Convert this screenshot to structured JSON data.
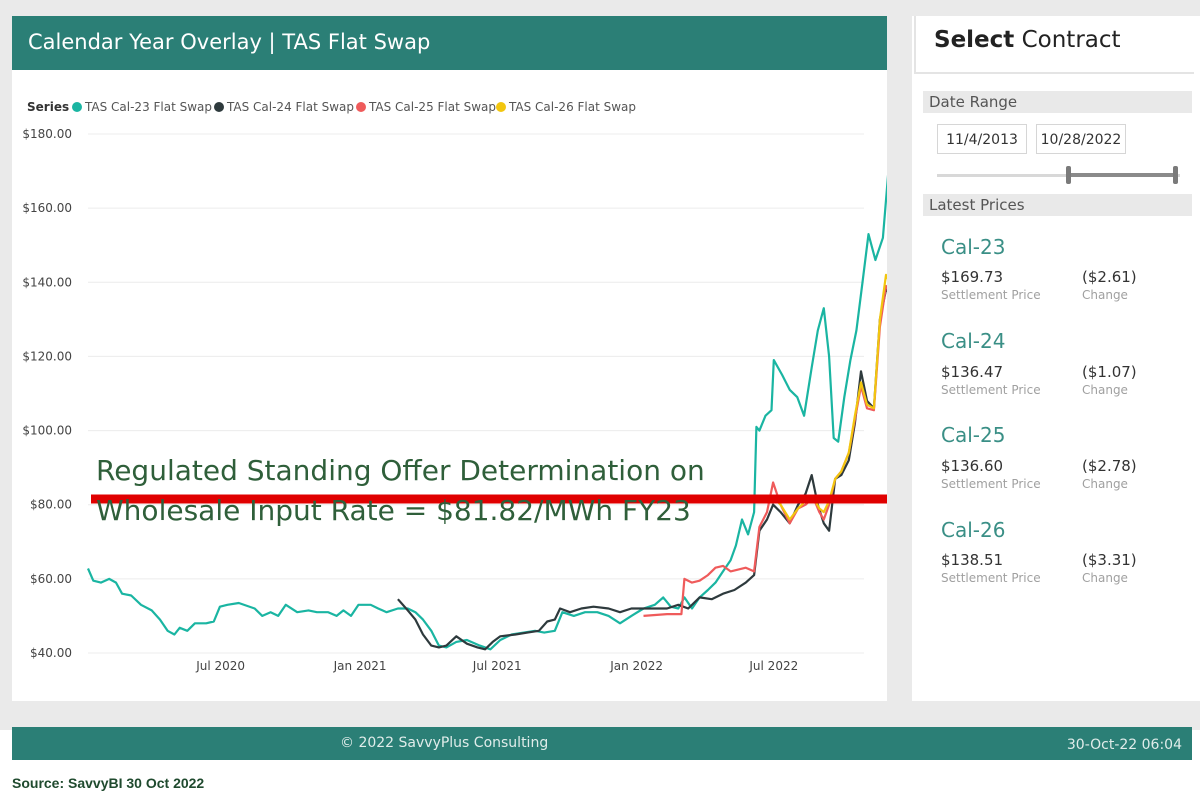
{
  "header": {
    "title": "Calendar Year Overlay | TAS Flat Swap"
  },
  "colors": {
    "teal": "#1ab5a2",
    "dark": "#2e3a3d",
    "red": "#ef5b5b",
    "yellow": "#f2c60f",
    "header_bg": "#2b7f76",
    "annotation": "#e00000",
    "annotation_text": "#2f5f3a"
  },
  "chart_data": {
    "type": "line",
    "legend_title": "Series",
    "legend_position": "top-left",
    "grid": true,
    "ylim": [
      40,
      180
    ],
    "y_ticks": [
      "$40.00",
      "$60.00",
      "$80.00",
      "$100.00",
      "$120.00",
      "$140.00",
      "$160.00",
      "$180.00"
    ],
    "y_tick_values": [
      40,
      60,
      80,
      100,
      120,
      140,
      160,
      180
    ],
    "x_ticks": [
      "Jul 2020",
      "Jan 2021",
      "Jul 2021",
      "Jan 2022",
      "Jul 2022"
    ],
    "x_tick_dates": [
      "2020-07-01",
      "2021-01-01",
      "2021-07-01",
      "2022-01-01",
      "2022-07-01"
    ],
    "xlim": [
      "2020-01-08",
      "2022-10-28"
    ],
    "series": [
      {
        "name": "TAS Cal-23 Flat Swap",
        "color": "#1ab5a2",
        "points": [
          [
            "2020-01-08",
            62.8
          ],
          [
            "2020-01-15",
            59.5
          ],
          [
            "2020-01-25",
            59
          ],
          [
            "2020-02-05",
            60
          ],
          [
            "2020-02-14",
            59
          ],
          [
            "2020-02-22",
            56
          ],
          [
            "2020-03-05",
            55.5
          ],
          [
            "2020-03-18",
            53
          ],
          [
            "2020-04-01",
            51.5
          ],
          [
            "2020-04-12",
            49
          ],
          [
            "2020-04-22",
            46
          ],
          [
            "2020-05-01",
            45
          ],
          [
            "2020-05-08",
            46.8
          ],
          [
            "2020-05-18",
            46
          ],
          [
            "2020-05-28",
            48
          ],
          [
            "2020-06-12",
            48
          ],
          [
            "2020-06-22",
            48.5
          ],
          [
            "2020-06-30",
            52.5
          ],
          [
            "2020-07-10",
            53
          ],
          [
            "2020-07-25",
            53.5
          ],
          [
            "2020-08-15",
            52
          ],
          [
            "2020-08-25",
            50
          ],
          [
            "2020-09-05",
            51
          ],
          [
            "2020-09-15",
            50
          ],
          [
            "2020-09-25",
            53
          ],
          [
            "2020-10-10",
            51
          ],
          [
            "2020-10-25",
            51.5
          ],
          [
            "2020-11-05",
            51
          ],
          [
            "2020-11-20",
            51
          ],
          [
            "2020-12-01",
            50
          ],
          [
            "2020-12-10",
            51.5
          ],
          [
            "2020-12-20",
            50
          ],
          [
            "2020-12-30",
            53
          ],
          [
            "2021-01-15",
            53
          ],
          [
            "2021-01-25",
            52
          ],
          [
            "2021-02-05",
            51
          ],
          [
            "2021-02-20",
            52
          ],
          [
            "2021-03-05",
            52
          ],
          [
            "2021-03-15",
            51
          ],
          [
            "2021-03-25",
            49
          ],
          [
            "2021-04-05",
            46
          ],
          [
            "2021-04-15",
            42
          ],
          [
            "2021-04-25",
            41.5
          ],
          [
            "2021-05-08",
            43
          ],
          [
            "2021-05-22",
            43.5
          ],
          [
            "2021-06-08",
            42
          ],
          [
            "2021-06-22",
            41
          ],
          [
            "2021-07-05",
            43.5
          ],
          [
            "2021-07-20",
            45
          ],
          [
            "2021-08-05",
            45.5
          ],
          [
            "2021-08-20",
            46
          ],
          [
            "2021-09-01",
            45.5
          ],
          [
            "2021-09-15",
            46
          ],
          [
            "2021-09-25",
            51
          ],
          [
            "2021-10-10",
            50
          ],
          [
            "2021-10-25",
            51
          ],
          [
            "2021-11-10",
            51
          ],
          [
            "2021-11-25",
            50
          ],
          [
            "2021-12-10",
            48
          ],
          [
            "2021-12-25",
            50
          ],
          [
            "2022-01-10",
            52
          ],
          [
            "2022-01-25",
            53
          ],
          [
            "2022-02-05",
            55
          ],
          [
            "2022-02-15",
            52.5
          ],
          [
            "2022-02-25",
            52
          ],
          [
            "2022-03-05",
            55
          ],
          [
            "2022-03-15",
            52
          ],
          [
            "2022-03-25",
            55
          ],
          [
            "2022-04-05",
            57
          ],
          [
            "2022-04-15",
            59
          ],
          [
            "2022-04-25",
            62
          ],
          [
            "2022-05-05",
            65
          ],
          [
            "2022-05-12",
            69
          ],
          [
            "2022-05-20",
            76
          ],
          [
            "2022-05-28",
            72
          ],
          [
            "2022-06-05",
            78
          ],
          [
            "2022-06-08",
            101
          ],
          [
            "2022-06-12",
            100
          ],
          [
            "2022-06-20",
            104
          ],
          [
            "2022-06-28",
            105.5
          ],
          [
            "2022-07-01",
            119
          ],
          [
            "2022-07-12",
            115
          ],
          [
            "2022-07-22",
            111
          ],
          [
            "2022-08-01",
            109
          ],
          [
            "2022-08-10",
            104
          ],
          [
            "2022-08-20",
            117
          ],
          [
            "2022-08-28",
            127
          ],
          [
            "2022-09-05",
            133
          ],
          [
            "2022-09-12",
            120
          ],
          [
            "2022-09-18",
            98
          ],
          [
            "2022-09-24",
            97
          ],
          [
            "2022-10-02",
            109
          ],
          [
            "2022-10-10",
            119
          ],
          [
            "2022-10-18",
            127
          ],
          [
            "2022-10-26",
            140
          ],
          [
            "2022-11-03",
            153
          ],
          [
            "2022-11-12",
            146
          ],
          [
            "2022-11-22",
            152
          ],
          [
            "2022-11-30",
            172
          ],
          [
            "2022-12-06",
            172.5
          ],
          [
            "2022-12-14",
            170
          ]
        ]
      },
      {
        "name": "TAS Cal-24 Flat Swap",
        "color": "#2e3a3d",
        "points": [
          [
            "2021-02-20",
            54.5
          ],
          [
            "2021-03-05",
            51.5
          ],
          [
            "2021-03-15",
            49
          ],
          [
            "2021-03-25",
            45
          ],
          [
            "2021-04-05",
            42
          ],
          [
            "2021-04-15",
            41.5
          ],
          [
            "2021-04-25",
            42
          ],
          [
            "2021-05-08",
            44.5
          ],
          [
            "2021-05-22",
            42.5
          ],
          [
            "2021-06-05",
            41.5
          ],
          [
            "2021-06-15",
            41
          ],
          [
            "2021-06-25",
            43
          ],
          [
            "2021-07-05",
            44.5
          ],
          [
            "2021-07-25",
            45
          ],
          [
            "2021-08-10",
            45.5
          ],
          [
            "2021-08-25",
            46
          ],
          [
            "2021-09-05",
            48.5
          ],
          [
            "2021-09-15",
            49
          ],
          [
            "2021-09-22",
            52
          ],
          [
            "2021-10-05",
            51
          ],
          [
            "2021-10-20",
            52
          ],
          [
            "2021-11-05",
            52.5
          ],
          [
            "2021-11-25",
            52
          ],
          [
            "2021-12-10",
            51
          ],
          [
            "2021-12-25",
            52
          ],
          [
            "2022-01-10",
            52
          ],
          [
            "2022-01-25",
            52
          ],
          [
            "2022-02-10",
            52
          ],
          [
            "2022-02-25",
            53
          ],
          [
            "2022-03-10",
            52
          ],
          [
            "2022-03-25",
            55
          ],
          [
            "2022-04-10",
            54.5
          ],
          [
            "2022-04-25",
            56
          ],
          [
            "2022-05-10",
            57
          ],
          [
            "2022-05-25",
            59
          ],
          [
            "2022-06-05",
            61
          ],
          [
            "2022-06-12",
            73
          ],
          [
            "2022-06-22",
            76
          ],
          [
            "2022-06-30",
            80
          ],
          [
            "2022-07-10",
            78
          ],
          [
            "2022-07-22",
            75
          ],
          [
            "2022-08-02",
            80
          ],
          [
            "2022-08-12",
            83
          ],
          [
            "2022-08-20",
            88
          ],
          [
            "2022-08-28",
            80
          ],
          [
            "2022-09-05",
            75
          ],
          [
            "2022-09-12",
            73
          ],
          [
            "2022-09-20",
            87
          ],
          [
            "2022-09-28",
            88
          ],
          [
            "2022-10-08",
            92
          ],
          [
            "2022-10-16",
            102
          ],
          [
            "2022-10-24",
            116
          ],
          [
            "2022-11-01",
            108
          ],
          [
            "2022-11-10",
            106
          ],
          [
            "2022-11-18",
            130
          ],
          [
            "2022-11-26",
            138
          ],
          [
            "2022-12-04",
            136.5
          ]
        ]
      },
      {
        "name": "TAS Cal-25 Flat Swap",
        "color": "#ef5b5b",
        "points": [
          [
            "2022-01-10",
            50
          ],
          [
            "2022-02-10",
            50.5
          ],
          [
            "2022-03-01",
            50.5
          ],
          [
            "2022-03-05",
            60
          ],
          [
            "2022-03-15",
            59
          ],
          [
            "2022-03-25",
            59.5
          ],
          [
            "2022-04-05",
            61
          ],
          [
            "2022-04-15",
            63
          ],
          [
            "2022-04-25",
            63.5
          ],
          [
            "2022-05-05",
            62
          ],
          [
            "2022-05-15",
            62.5
          ],
          [
            "2022-05-25",
            63
          ],
          [
            "2022-06-05",
            62
          ],
          [
            "2022-06-12",
            74
          ],
          [
            "2022-06-22",
            78
          ],
          [
            "2022-06-30",
            86
          ],
          [
            "2022-07-10",
            80
          ],
          [
            "2022-07-22",
            75
          ],
          [
            "2022-08-02",
            79
          ],
          [
            "2022-08-12",
            80
          ],
          [
            "2022-08-22",
            82
          ],
          [
            "2022-08-30",
            78
          ],
          [
            "2022-09-05",
            76
          ],
          [
            "2022-09-12",
            80
          ],
          [
            "2022-09-20",
            87
          ],
          [
            "2022-09-28",
            89
          ],
          [
            "2022-10-08",
            94
          ],
          [
            "2022-10-16",
            103
          ],
          [
            "2022-10-24",
            112
          ],
          [
            "2022-11-01",
            106
          ],
          [
            "2022-11-10",
            105.5
          ],
          [
            "2022-11-18",
            128
          ],
          [
            "2022-11-26",
            139
          ],
          [
            "2022-12-04",
            136.6
          ]
        ]
      },
      {
        "name": "TAS Cal-26 Flat Swap",
        "color": "#f2c60f",
        "points": [
          [
            "2022-06-30",
            82
          ],
          [
            "2022-07-10",
            80
          ],
          [
            "2022-07-22",
            76
          ],
          [
            "2022-08-02",
            79
          ],
          [
            "2022-08-12",
            81
          ],
          [
            "2022-08-22",
            82
          ],
          [
            "2022-08-30",
            79
          ],
          [
            "2022-09-05",
            78
          ],
          [
            "2022-09-12",
            81
          ],
          [
            "2022-09-20",
            87
          ],
          [
            "2022-09-28",
            89
          ],
          [
            "2022-10-08",
            94
          ],
          [
            "2022-10-16",
            104
          ],
          [
            "2022-10-24",
            113
          ],
          [
            "2022-11-01",
            107
          ],
          [
            "2022-11-10",
            106
          ],
          [
            "2022-11-18",
            130
          ],
          [
            "2022-11-26",
            142
          ],
          [
            "2022-12-04",
            138.5
          ]
        ]
      }
    ],
    "annotation": {
      "line1": "Regulated Standing Offer Determination on",
      "line2": "Wholesale Input Rate = $81.82/MWh FY23",
      "value": 81.82
    }
  },
  "right_panel": {
    "select_bold": "Select",
    "select_rest": "Contract",
    "date_range_label": "Date Range",
    "date_start": "11/4/2013",
    "date_end": "10/28/2022",
    "slider_range": [
      0.54,
      0.985
    ],
    "latest_prices_label": "Latest Prices",
    "prices": [
      {
        "name": "Cal-23",
        "price": "$169.73",
        "price_label": "Settlement Price",
        "change": "($2.61)",
        "change_label": "Change"
      },
      {
        "name": "Cal-24",
        "price": "$136.47",
        "price_label": "Settlement Price",
        "change": "($1.07)",
        "change_label": "Change"
      },
      {
        "name": "Cal-25",
        "price": "$136.60",
        "price_label": "Settlement Price",
        "change": "($2.78)",
        "change_label": "Change"
      },
      {
        "name": "Cal-26",
        "price": "$138.51",
        "price_label": "Settlement Price",
        "change": "($3.31)",
        "change_label": "Change"
      }
    ]
  },
  "footer": {
    "copyright": "© 2022 SavvyPlus Consulting",
    "timestamp": "30-Oct-22 06:04"
  },
  "source": "Source: SavvyBI 30 Oct 2022"
}
